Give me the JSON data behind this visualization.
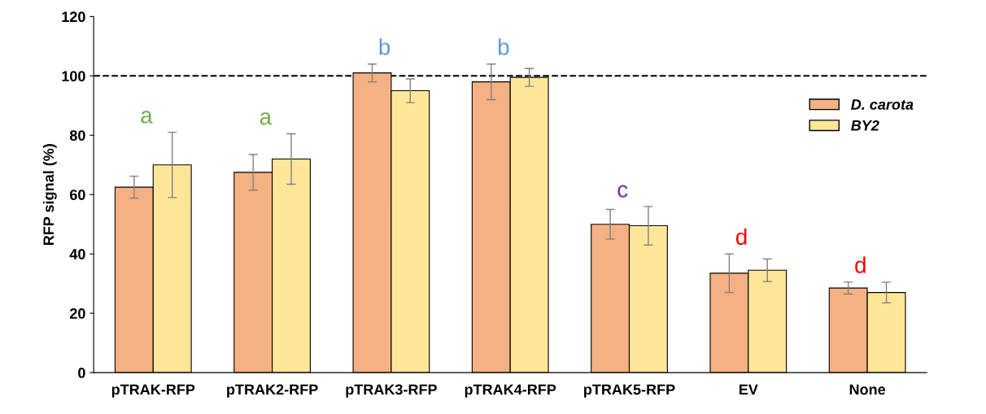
{
  "chart_data": {
    "type": "bar",
    "ylabel": "RFP signal (%)",
    "categories": [
      "pTRAK-RFP",
      "pTRAK2-RFP",
      "pTRAK3-RFP",
      "pTRAK4-RFP",
      "pTRAK5-RFP",
      "EV",
      "None"
    ],
    "series": [
      {
        "name": "D. carota",
        "color": "#f4b183",
        "values": [
          62.5,
          67.5,
          101,
          98,
          50,
          33.5,
          28.5
        ],
        "errors": [
          3.7,
          6,
          3,
          6,
          5,
          6.5,
          2
        ]
      },
      {
        "name": "BY2",
        "color": "#ffe699",
        "values": [
          70,
          72,
          95,
          99.5,
          49.5,
          34.5,
          27
        ],
        "errors": [
          11,
          8.5,
          4,
          3,
          6.5,
          3.8,
          3.5
        ]
      }
    ],
    "ylim": [
      0,
      120
    ],
    "yticks": [
      0,
      20,
      40,
      60,
      80,
      100,
      120
    ],
    "ref_lines": [
      {
        "axis": "y",
        "value": 100,
        "color": "#000000",
        "line_style": "dashed"
      }
    ],
    "annotations": [
      "a",
      "a",
      "b",
      "b",
      "c",
      "d",
      "d"
    ],
    "legend": "right",
    "grid": false
  }
}
